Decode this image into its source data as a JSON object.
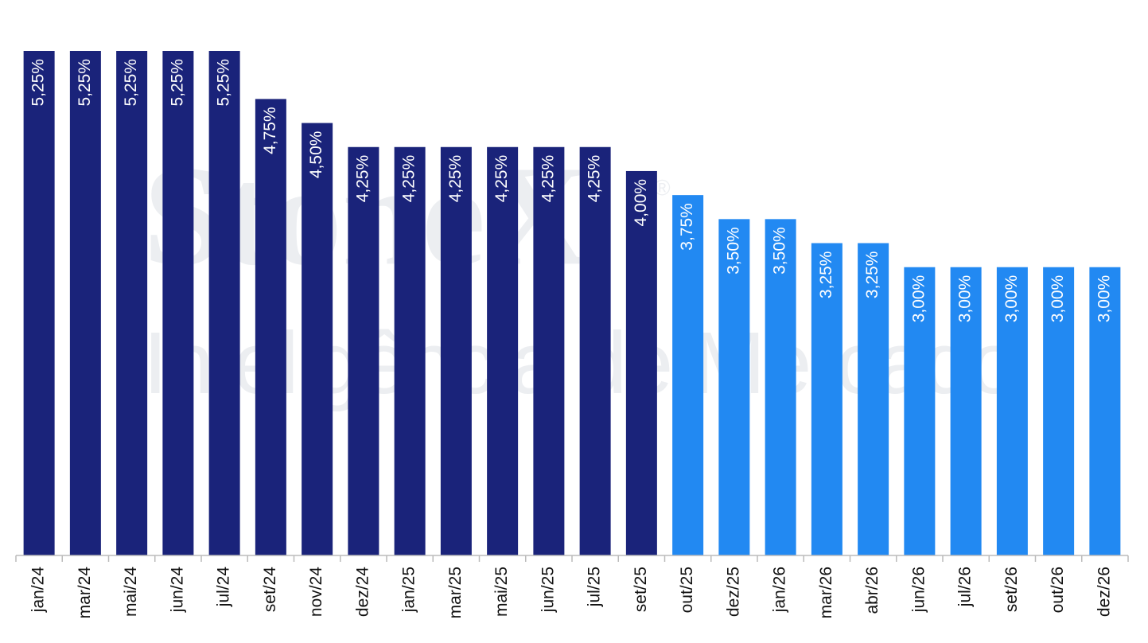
{
  "chart_data": {
    "type": "bar",
    "watermark": {
      "brand": "StoneX",
      "mark": "®",
      "tagline": "Inteligência de Mercado"
    },
    "categories": [
      "jan/24",
      "mar/24",
      "mai/24",
      "jun/24",
      "jul/24",
      "set/24",
      "nov/24",
      "dez/24",
      "jan/25",
      "mar/25",
      "mai/25",
      "jun/25",
      "jul/25",
      "set/25",
      "out/25",
      "dez/25",
      "jan/26",
      "mar/26",
      "abr/26",
      "jun/26",
      "jul/26",
      "set/26",
      "out/26",
      "dez/26"
    ],
    "values": [
      5.25,
      5.25,
      5.25,
      5.25,
      5.25,
      4.75,
      4.5,
      4.25,
      4.25,
      4.25,
      4.25,
      4.25,
      4.25,
      4.0,
      3.75,
      3.5,
      3.5,
      3.25,
      3.25,
      3.0,
      3.0,
      3.0,
      3.0,
      3.0
    ],
    "value_labels": [
      "5,25%",
      "5,25%",
      "5,25%",
      "5,25%",
      "5,25%",
      "4,75%",
      "4,50%",
      "4,25%",
      "4,25%",
      "4,25%",
      "4,25%",
      "4,25%",
      "4,25%",
      "4,00%",
      "3,75%",
      "3,50%",
      "3,50%",
      "3,25%",
      "3,25%",
      "3,00%",
      "3,00%",
      "3,00%",
      "3,00%",
      "3,00%"
    ],
    "colors": [
      "#1a237a",
      "#1a237a",
      "#1a237a",
      "#1a237a",
      "#1a237a",
      "#1a237a",
      "#1a237a",
      "#1a237a",
      "#1a237a",
      "#1a237a",
      "#1a237a",
      "#1a237a",
      "#1a237a",
      "#1a237a",
      "#2289f2",
      "#2289f2",
      "#2289f2",
      "#2289f2",
      "#2289f2",
      "#2289f2",
      "#2289f2",
      "#2289f2",
      "#2289f2",
      "#2289f2"
    ],
    "ylim": [
      0,
      5.25
    ]
  }
}
